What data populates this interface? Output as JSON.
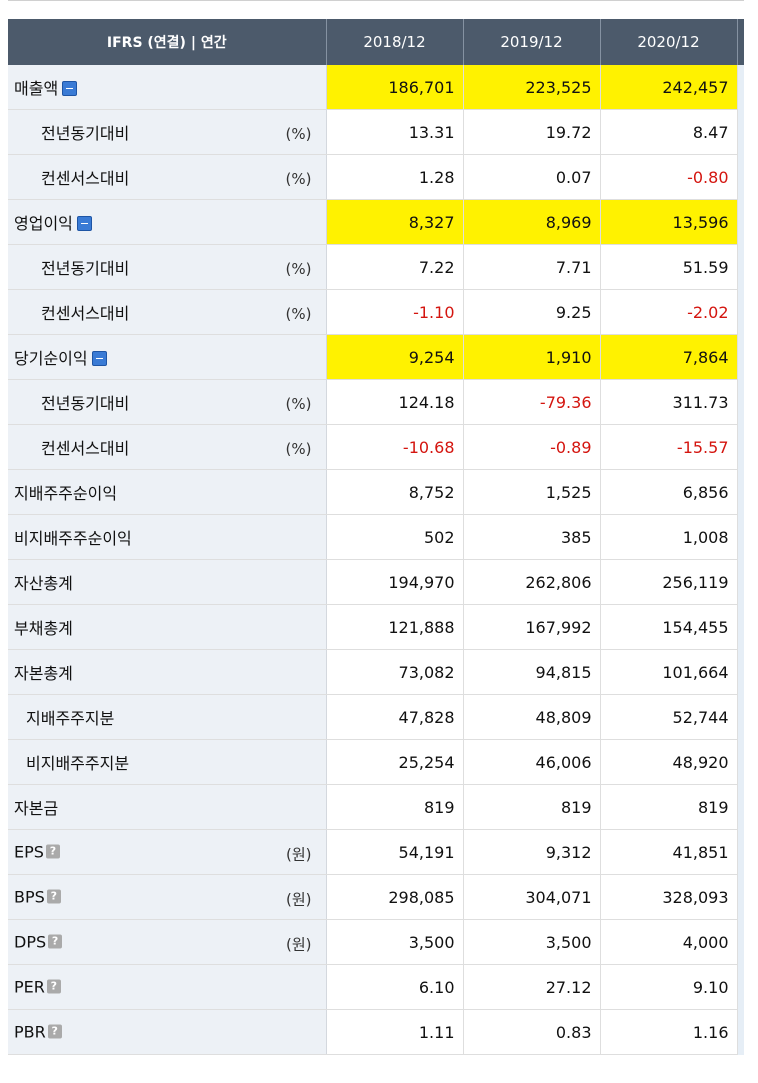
{
  "header": {
    "label": "IFRS (연결) | 연간",
    "years": [
      "2018/12",
      "2019/12",
      "2020/12"
    ]
  },
  "rows": [
    {
      "label": "매출액",
      "level": 0,
      "icon": "minus",
      "unit": "",
      "values": [
        "186,701",
        "223,525",
        "242,457"
      ],
      "neg": [
        false,
        false,
        false
      ]
    },
    {
      "label": "전년동기대비",
      "level": 1,
      "icon": "",
      "unit": "(%)",
      "values": [
        "13.31",
        "19.72",
        "8.47"
      ],
      "neg": [
        false,
        false,
        false
      ]
    },
    {
      "label": "컨센서스대비",
      "level": 1,
      "icon": "",
      "unit": "(%)",
      "values": [
        "1.28",
        "0.07",
        "-0.80"
      ],
      "neg": [
        false,
        false,
        true
      ]
    },
    {
      "label": "영업이익",
      "level": 0,
      "icon": "minus",
      "unit": "",
      "values": [
        "8,327",
        "8,969",
        "13,596"
      ],
      "neg": [
        false,
        false,
        false
      ]
    },
    {
      "label": "전년동기대비",
      "level": 1,
      "icon": "",
      "unit": "(%)",
      "values": [
        "7.22",
        "7.71",
        "51.59"
      ],
      "neg": [
        false,
        false,
        false
      ]
    },
    {
      "label": "컨센서스대비",
      "level": 1,
      "icon": "",
      "unit": "(%)",
      "values": [
        "-1.10",
        "9.25",
        "-2.02"
      ],
      "neg": [
        true,
        false,
        true
      ]
    },
    {
      "label": "당기순이익",
      "level": 0,
      "icon": "minus",
      "unit": "",
      "values": [
        "9,254",
        "1,910",
        "7,864"
      ],
      "neg": [
        false,
        false,
        false
      ]
    },
    {
      "label": "전년동기대비",
      "level": 1,
      "icon": "",
      "unit": "(%)",
      "values": [
        "124.18",
        "-79.36",
        "311.73"
      ],
      "neg": [
        false,
        true,
        false
      ]
    },
    {
      "label": "컨센서스대비",
      "level": 1,
      "icon": "",
      "unit": "(%)",
      "values": [
        "-10.68",
        "-0.89",
        "-15.57"
      ],
      "neg": [
        true,
        true,
        true
      ]
    },
    {
      "label": "지배주주순이익",
      "level": 0,
      "icon": "",
      "unit": "",
      "values": [
        "8,752",
        "1,525",
        "6,856"
      ],
      "neg": [
        false,
        false,
        false
      ]
    },
    {
      "label": "비지배주주순이익",
      "level": 0,
      "icon": "",
      "unit": "",
      "values": [
        "502",
        "385",
        "1,008"
      ],
      "neg": [
        false,
        false,
        false
      ]
    },
    {
      "label": "자산총계",
      "level": 0,
      "icon": "",
      "unit": "",
      "values": [
        "194,970",
        "262,806",
        "256,119"
      ],
      "neg": [
        false,
        false,
        false
      ]
    },
    {
      "label": "부채총계",
      "level": 0,
      "icon": "",
      "unit": "",
      "values": [
        "121,888",
        "167,992",
        "154,455"
      ],
      "neg": [
        false,
        false,
        false
      ]
    },
    {
      "label": "자본총계",
      "level": 0,
      "icon": "",
      "unit": "",
      "values": [
        "73,082",
        "94,815",
        "101,664"
      ],
      "neg": [
        false,
        false,
        false
      ]
    },
    {
      "label": "지배주주지분",
      "level": 2,
      "icon": "",
      "unit": "",
      "values": [
        "47,828",
        "48,809",
        "52,744"
      ],
      "neg": [
        false,
        false,
        false
      ]
    },
    {
      "label": "비지배주주지분",
      "level": 2,
      "icon": "",
      "unit": "",
      "values": [
        "25,254",
        "46,006",
        "48,920"
      ],
      "neg": [
        false,
        false,
        false
      ]
    },
    {
      "label": "자본금",
      "level": 0,
      "icon": "",
      "unit": "",
      "values": [
        "819",
        "819",
        "819"
      ],
      "neg": [
        false,
        false,
        false
      ]
    },
    {
      "label": "EPS",
      "level": 0,
      "icon": "help",
      "unit": "(원)",
      "values": [
        "54,191",
        "9,312",
        "41,851"
      ],
      "neg": [
        false,
        false,
        false
      ]
    },
    {
      "label": "BPS",
      "level": 0,
      "icon": "help",
      "unit": "(원)",
      "values": [
        "298,085",
        "304,071",
        "328,093"
      ],
      "neg": [
        false,
        false,
        false
      ]
    },
    {
      "label": "DPS",
      "level": 0,
      "icon": "help",
      "unit": "(원)",
      "values": [
        "3,500",
        "3,500",
        "4,000"
      ],
      "neg": [
        false,
        false,
        false
      ]
    },
    {
      "label": "PER",
      "level": 0,
      "icon": "help",
      "unit": "",
      "values": [
        "6.10",
        "27.12",
        "9.10"
      ],
      "neg": [
        false,
        false,
        false
      ]
    },
    {
      "label": "PBR",
      "level": 0,
      "icon": "help",
      "unit": "",
      "values": [
        "1.11",
        "0.83",
        "1.16"
      ],
      "neg": [
        false,
        false,
        false
      ]
    }
  ],
  "help_glyph": "?",
  "highlight_rows": [
    0,
    3,
    6
  ],
  "colors": {
    "header_bg": "#4c5a6b",
    "label_bg": "#edf1f6",
    "negative": "#d4150f",
    "highlight": "#fff200",
    "minus_icon": "#3a7bd5"
  }
}
